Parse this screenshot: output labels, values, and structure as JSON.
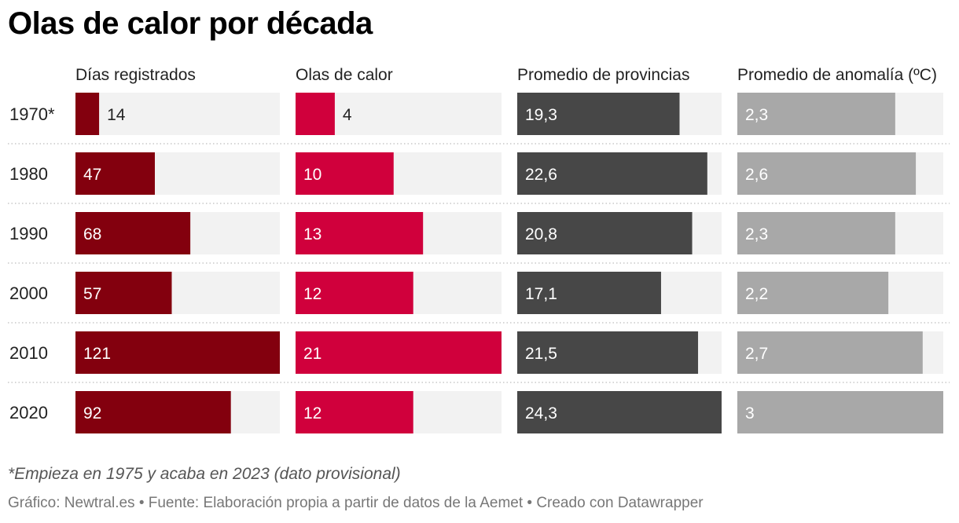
{
  "title": "Olas de calor por década",
  "note": "*Empieza en 1975 y acaba en 2023 (dato provisional)",
  "footer": "Gráfico: Newtral.es • Fuente: Elaboración propia a partir de datos de la Aemet • Creado con Datawrapper",
  "chart_data": {
    "type": "bar",
    "categories": [
      "1970*",
      "1980",
      "1990",
      "2000",
      "2010",
      "2020"
    ],
    "series": [
      {
        "name": "Días registrados",
        "values": [
          14,
          47,
          68,
          57,
          121,
          92
        ],
        "labels": [
          "14",
          "47",
          "68",
          "57",
          "121",
          "92"
        ],
        "max": 121,
        "color": "#83000e"
      },
      {
        "name": "Olas de calor",
        "values": [
          4,
          10,
          13,
          12,
          21,
          12
        ],
        "labels": [
          "4",
          "10",
          "13",
          "12",
          "21",
          "12"
        ],
        "max": 21,
        "color": "#d0003c"
      },
      {
        "name": "Promedio de provincias",
        "values": [
          19.3,
          22.6,
          20.8,
          17.1,
          21.5,
          24.3
        ],
        "labels": [
          "19,3",
          "22,6",
          "20,8",
          "17,1",
          "21,5",
          "24,3"
        ],
        "max": 24.3,
        "color": "#474747"
      },
      {
        "name": "Promedio de anomalía (ºC)",
        "values": [
          2.3,
          2.6,
          2.3,
          2.2,
          2.7,
          3
        ],
        "labels": [
          "2,3",
          "2,6",
          "2,3",
          "2,2",
          "2,7",
          "3"
        ],
        "max": 3,
        "color": "#a8a8a8"
      }
    ],
    "background_color": "#f2f2f2",
    "separators": "dotted",
    "legend": "none"
  }
}
